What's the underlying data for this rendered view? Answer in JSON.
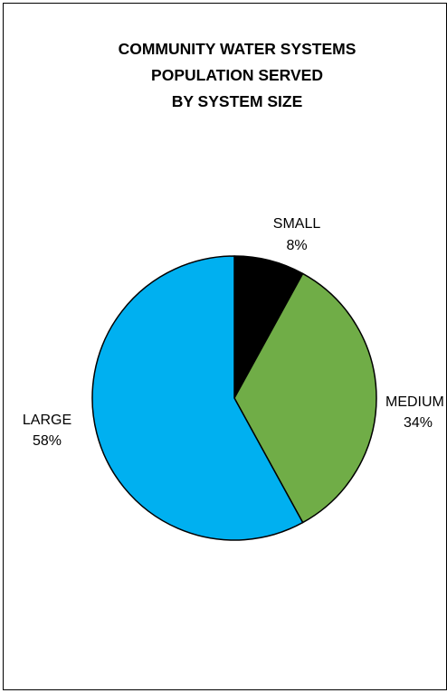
{
  "chart_data": {
    "type": "pie",
    "title_lines": [
      "COMMUNITY WATER SYSTEMS",
      "POPULATION SERVED",
      "BY SYSTEM SIZE"
    ],
    "slices": [
      {
        "name": "SMALL",
        "value": 8,
        "value_label": "8%",
        "color": "#000000"
      },
      {
        "name": "MEDIUM",
        "value": 34,
        "value_label": "34%",
        "color": "#70AD47"
      },
      {
        "name": "LARGE",
        "value": 58,
        "value_label": "58%",
        "color": "#00B0F0"
      }
    ],
    "start_angle_deg": 0,
    "direction": "clockwise"
  }
}
